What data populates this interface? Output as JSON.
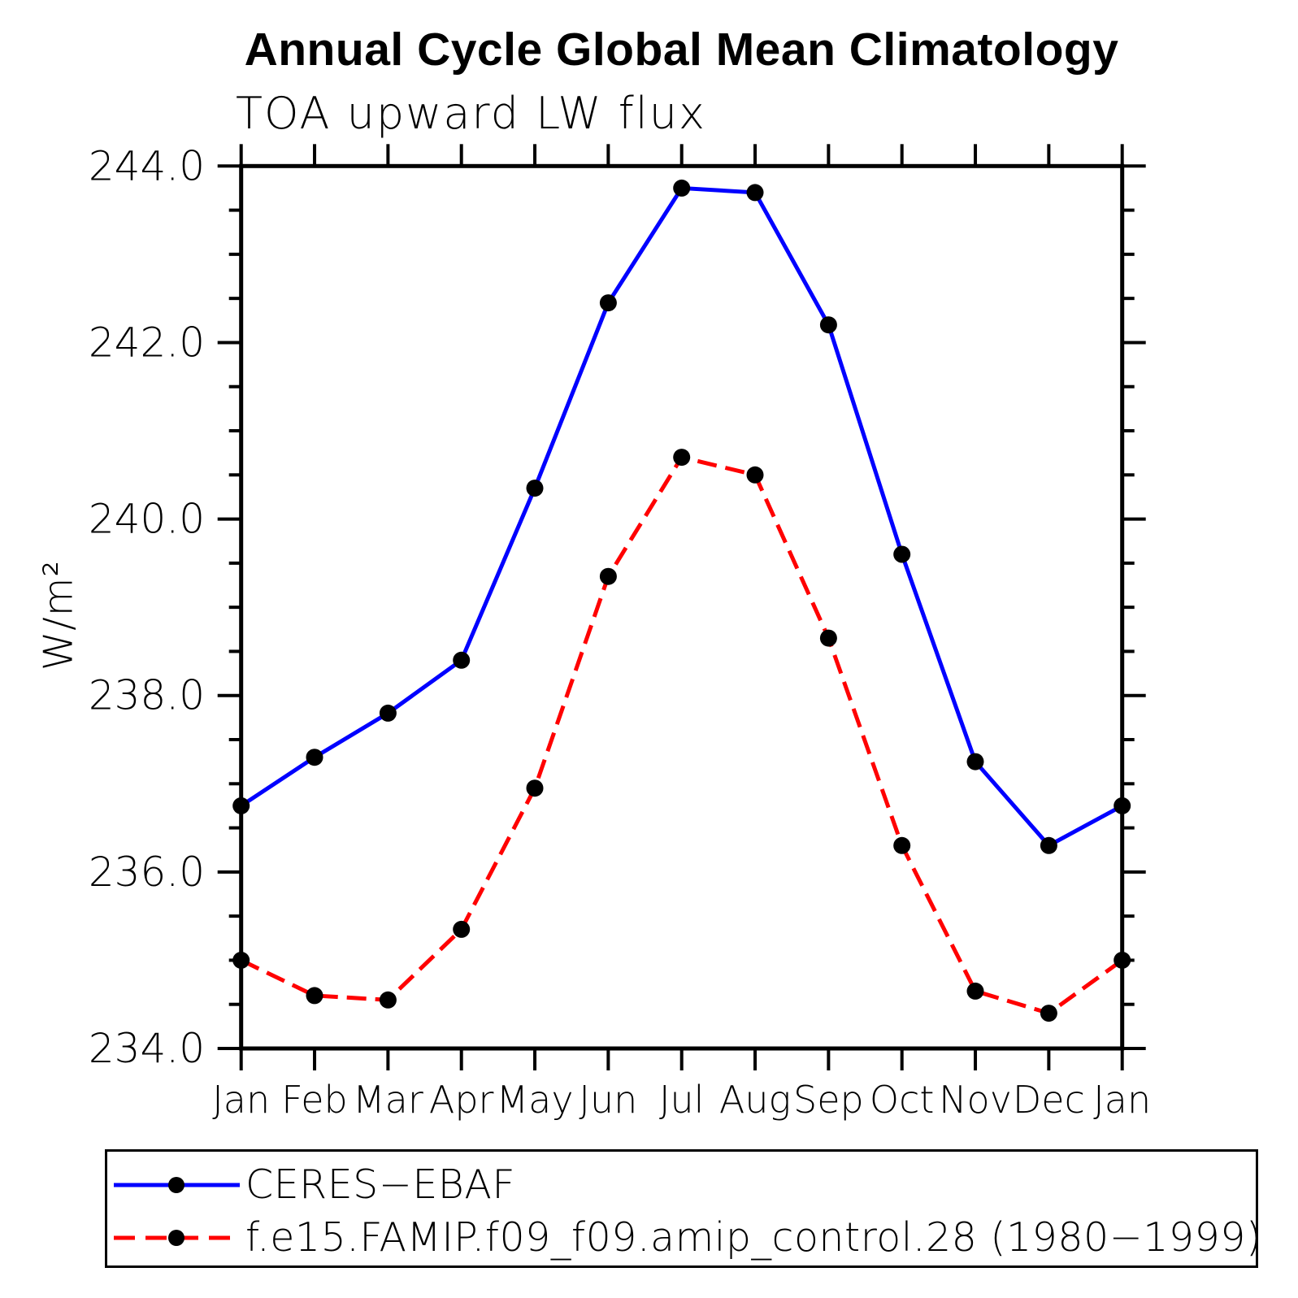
{
  "page": {
    "background_color": "#ffffff"
  },
  "chart_data": {
    "type": "line",
    "title": "Annual Cycle Global Mean Climatology",
    "subtitle": "TOA upward LW flux",
    "ylabel": "W/m²",
    "xlabel": "",
    "categories": [
      "Jan",
      "Feb",
      "Mar",
      "Apr",
      "May",
      "Jun",
      "Jul",
      "Aug",
      "Sep",
      "Oct",
      "Nov",
      "Dec",
      "Jan"
    ],
    "ylim": [
      234.0,
      244.0
    ],
    "ytick_major_interval": 2.0,
    "ytick_minor_interval": 0.5,
    "ytick_label_format": "one_decimal",
    "grid": false,
    "legend_position": "bottom-box",
    "frame_color": "#000000",
    "series": [
      {
        "name": "CERES−EBAF",
        "line_color": "#0000ff",
        "line_style": "solid",
        "marker": "filled-circle",
        "marker_color": "#000000",
        "values": [
          236.75,
          237.3,
          237.8,
          238.4,
          240.35,
          242.45,
          243.75,
          243.7,
          242.2,
          239.6,
          237.25,
          236.3,
          236.75
        ]
      },
      {
        "name": "f.e15.FAMIP.f09_f09.amip_control.28 (1980−1999)",
        "line_color": "#ff0000",
        "line_style": "dashed",
        "marker": "filled-circle",
        "marker_color": "#000000",
        "values": [
          235.0,
          234.6,
          234.55,
          235.35,
          236.95,
          239.35,
          240.7,
          240.5,
          238.65,
          236.3,
          234.65,
          234.4,
          235.0
        ]
      }
    ]
  }
}
